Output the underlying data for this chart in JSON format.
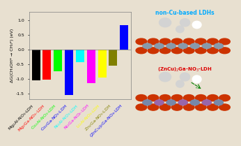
{
  "categories": [
    "Mg$_2$Al-NO$_3$-LDH",
    "Mg$_2$Ga-NO$_3$-LDH",
    "Co$_2$Al-NO$_3$-LDH",
    "Co$_2$Ga-NO$_3$-LDH",
    "Ni$_2$Al-NO$_3$-LDH",
    "Ni$_2$Ga-NO$_3$-LDH",
    "Li$_2$Al-NO$_3$-LDH",
    "Zn$_2$Ga-NO$_3$-LDH",
    "(ZnCu)$_2$Ga-NO$_3$-LDH"
  ],
  "values": [
    -1.05,
    -1.02,
    -0.75,
    -1.55,
    -0.42,
    -1.15,
    -0.95,
    -0.55,
    0.85
  ],
  "colors": [
    "black",
    "red",
    "lime",
    "blue",
    "cyan",
    "magenta",
    "yellow",
    "olive",
    "blue"
  ],
  "tick_colors": [
    "black",
    "red",
    "lime",
    "blue",
    "cyan",
    "magenta",
    "yellow",
    "olive",
    "blue"
  ],
  "ylabel": "ΔG(CH₃OH* → CH₃*) (eV)",
  "ylim": [
    -1.7,
    1.3
  ],
  "yticks": [
    -1.5,
    -1.0,
    -0.5,
    0.0,
    0.5,
    1.0
  ],
  "background_color": "#e8e0d0",
  "plot_bg": "#e8e0d0",
  "label_non_cu": "non-Cu-based LDHs",
  "label_zncu": "(ZnCu)$_2$Ga-NO$_3$-LDH",
  "label_non_cu_color": "#00aaff",
  "label_zncu_color": "#dd0000"
}
